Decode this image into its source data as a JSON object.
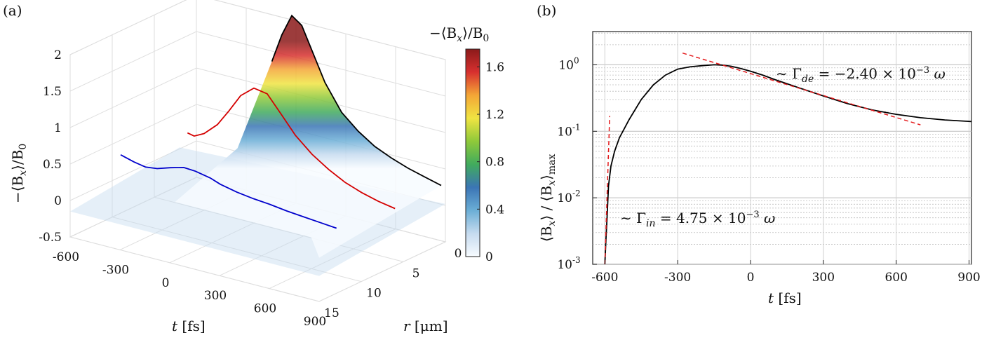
{
  "panels": {
    "a": {
      "label": "(a)"
    },
    "b": {
      "label": "(b)"
    }
  },
  "chart_data": [
    {
      "panel": "a",
      "type": "surface3d",
      "zlabel_text": "−⟨B",
      "zlabel_sub": "x",
      "zlabel_tail": "⟩/B",
      "zlabel_sub2": "0",
      "xlabel_var": "t",
      "xlabel_unit": "[fs]",
      "ylabel_var": "r",
      "ylabel_unit": "[μm]",
      "x_ticks": [
        "-600",
        "-300",
        "0",
        "300",
        "600",
        "900"
      ],
      "x_tick_values": [
        -600,
        -300,
        0,
        300,
        600,
        900
      ],
      "r_ticks": [
        "0",
        "5",
        "10",
        "15"
      ],
      "r_tick_values": [
        0,
        5,
        10,
        15
      ],
      "z_ticks": [
        "-0.5",
        "0",
        "0.5",
        "1",
        "1.5",
        "2"
      ],
      "z_tick_values": [
        -0.5,
        0,
        0.5,
        1,
        1.5,
        2
      ],
      "zlim": [
        -0.5,
        2
      ],
      "colorbar": {
        "label_main": "−⟨B",
        "label_sub": "x",
        "label_tail": "⟩/B",
        "label_sub2": "0",
        "ticks": [
          "0",
          "0.4",
          "0.8",
          "1.2",
          "1.6"
        ],
        "tick_values": [
          0,
          0.4,
          0.8,
          1.2,
          1.6
        ],
        "range": [
          0,
          1.75
        ],
        "colormap": [
          "#f7fbff",
          "#c6dbef",
          "#6baed6",
          "#3b75b5",
          "#41ab5d",
          "#8fc93a",
          "#f0e442",
          "#f4a636",
          "#d7302f",
          "#8b1a1a"
        ]
      },
      "series": [
        {
          "color": "#000000",
          "t": [
            -120,
            -60,
            0,
            60,
            120,
            200,
            300,
            400,
            500,
            600,
            700,
            800,
            900
          ],
          "z": [
            1.4,
            1.8,
            2.1,
            2.0,
            1.7,
            1.3,
            0.95,
            0.75,
            0.6,
            0.5,
            0.42,
            0.36,
            0.3
          ]
        },
        {
          "color": "#d40000",
          "t": [
            -400,
            -360,
            -300,
            -220,
            -150,
            -80,
            0,
            80,
            160,
            250,
            350,
            450,
            550,
            650,
            750,
            850
          ],
          "z": [
            0.5,
            0.48,
            0.55,
            0.72,
            0.95,
            1.2,
            1.35,
            1.32,
            1.1,
            0.85,
            0.65,
            0.5,
            0.38,
            0.3,
            0.24,
            0.2
          ]
        },
        {
          "color": "#0000cc",
          "t": [
            -600,
            -520,
            -450,
            -380,
            -300,
            -220,
            -150,
            -60,
            0,
            100,
            200,
            300,
            400,
            500,
            600,
            700
          ],
          "z": [
            0.3,
            0.25,
            0.22,
            0.24,
            0.3,
            0.35,
            0.34,
            0.3,
            0.25,
            0.2,
            0.17,
            0.15,
            0.12,
            0.1,
            0.08,
            0.06
          ]
        }
      ]
    },
    {
      "panel": "b",
      "type": "line",
      "scale_y": "log",
      "xlabel_var": "t",
      "xlabel_unit": "[fs]",
      "ylabel_text": "⟨B",
      "ylabel_sub": "x",
      "ylabel_mid": "⟩ / ⟨B",
      "ylabel_sub2": "x",
      "ylabel_tail": "⟩",
      "ylabel_sub3": "max",
      "xlim": [
        -650,
        910
      ],
      "ylim_exp": [
        -3,
        0.5
      ],
      "x_ticks": [
        "-600",
        "-300",
        "0",
        "300",
        "600",
        "900"
      ],
      "x_tick_values": [
        -600,
        -300,
        0,
        300,
        600,
        900
      ],
      "y_ticks_base": "10",
      "y_tick_exps": [
        "-3",
        "-2",
        "-1",
        "0"
      ],
      "y_tick_exp_values": [
        -3,
        -2,
        -1,
        0
      ],
      "grid": true,
      "series": [
        {
          "style": "solid",
          "color": "#000000",
          "x": [
            -600,
            -595,
            -590,
            -585,
            -575,
            -560,
            -540,
            -500,
            -450,
            -400,
            -350,
            -300,
            -250,
            -200,
            -150,
            -120,
            -80,
            -40,
            0,
            50,
            100,
            200,
            300,
            400,
            500,
            600,
            700,
            800,
            910
          ],
          "y": [
            0.001,
            0.0025,
            0.006,
            0.015,
            0.03,
            0.05,
            0.08,
            0.15,
            0.3,
            0.5,
            0.7,
            0.86,
            0.93,
            0.97,
            1.0,
            0.99,
            0.95,
            0.88,
            0.8,
            0.7,
            0.6,
            0.45,
            0.34,
            0.26,
            0.21,
            0.18,
            0.16,
            0.148,
            0.14
          ]
        },
        {
          "style": "dashed",
          "color": "#e41a1c",
          "x": [
            -600,
            -580
          ],
          "y": [
            0.001,
            0.17
          ]
        },
        {
          "style": "dashed",
          "color": "#e41a1c",
          "x": [
            -280,
            700
          ],
          "y": [
            1.5,
            0.125
          ]
        }
      ],
      "annotations": [
        {
          "text_pre": "∼ Γ",
          "sub": "de",
          "text_post": " = −2.40 × 10",
          "sup": "−3",
          "text_end": " ω"
        },
        {
          "text_pre": "∼ Γ",
          "sub": "in",
          "text_post": " = 4.75 × 10",
          "sup": "−3",
          "text_end": " ω"
        }
      ]
    }
  ]
}
